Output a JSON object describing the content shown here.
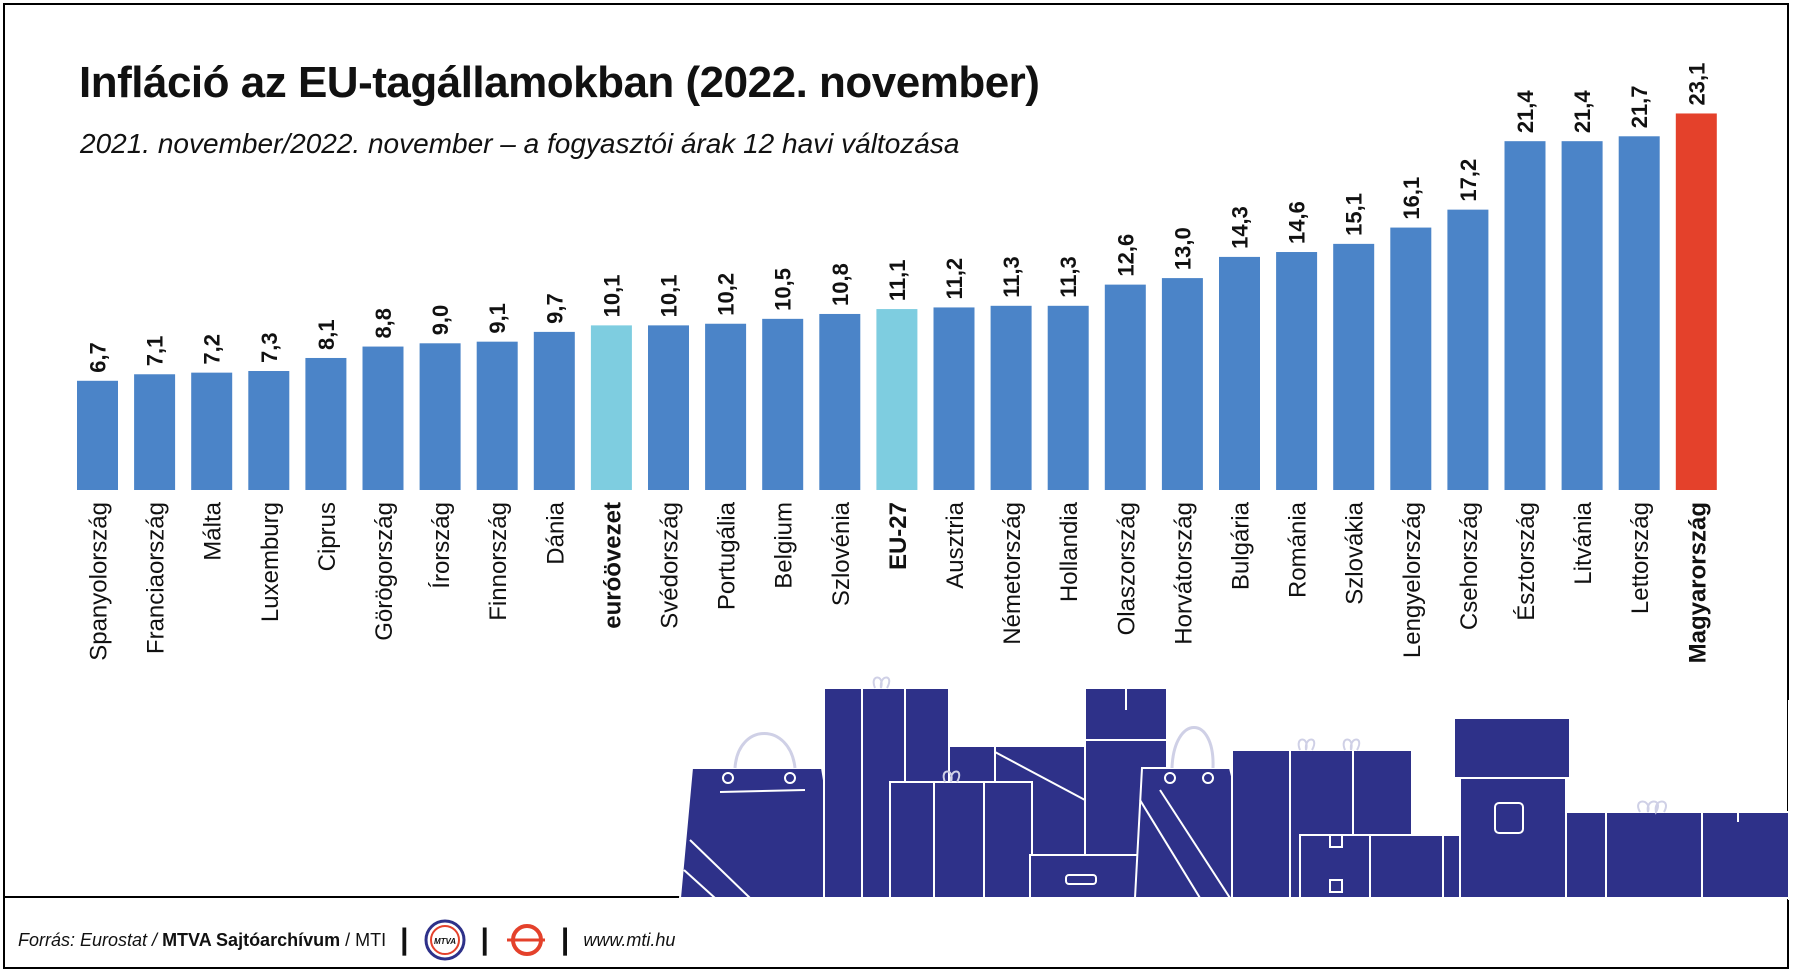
{
  "title": "Infláció az EU-tagállamokban (2022. november)",
  "subtitle": "2021. november/2022. november – a fogyasztói árak 12 havi változása",
  "colors": {
    "default": "#4b84c8",
    "highlight_light": "#7ecde0",
    "highlight_red": "#e4412b",
    "boxes": "#2e3189",
    "box_lines": "#ffffff"
  },
  "chart_data": {
    "type": "bar",
    "title": "Infláció az EU-tagállamokban (2022. november)",
    "subtitle": "2021. november/2022. november – a fogyasztói árak 12 havi változása",
    "xlabel": "",
    "ylabel": "",
    "ylim": [
      0,
      25
    ],
    "grid": false,
    "legend": "none",
    "categories": [
      "Spanyolország",
      "Franciaország",
      "Málta",
      "Luxemburg",
      "Ciprus",
      "Görögország",
      "Írország",
      "Finnország",
      "Dánia",
      "euróövezet",
      "Svédország",
      "Portugália",
      "Belgium",
      "Szlovénia",
      "EU-27",
      "Ausztria",
      "Németország",
      "Hollandia",
      "Olaszország",
      "Horvátország",
      "Bulgária",
      "Románia",
      "Szlovákia",
      "Lengyelország",
      "Csehország",
      "Észtország",
      "Litvánia",
      "Lettország",
      "Magyarország"
    ],
    "values": [
      6.7,
      7.1,
      7.2,
      7.3,
      8.1,
      8.8,
      9.0,
      9.1,
      9.7,
      10.1,
      10.1,
      10.2,
      10.5,
      10.8,
      11.1,
      11.2,
      11.3,
      11.3,
      12.6,
      13.0,
      14.3,
      14.6,
      15.1,
      16.1,
      17.2,
      21.4,
      21.4,
      21.7,
      23.1
    ],
    "value_labels": [
      "6,7",
      "7,1",
      "7,2",
      "7,3",
      "8,1",
      "8,8",
      "9,0",
      "9,1",
      "9,7",
      "10,1",
      "10,1",
      "10,2",
      "10,5",
      "10,8",
      "11,1",
      "11,2",
      "11,3",
      "11,3",
      "12,6",
      "13,0",
      "14,3",
      "14,6",
      "15,1",
      "16,1",
      "17,2",
      "21,4",
      "21,4",
      "21,7",
      "23,1"
    ],
    "highlight": {
      "euróövezet": "light",
      "EU-27": "light",
      "Magyarország": "red"
    },
    "bold_labels": [
      "euróövezet",
      "EU-27",
      "Magyarország"
    ]
  },
  "footer": {
    "source_prefix": "Forrás: Eurostat /",
    "source_bold": "MTVA Sajtóarchívum",
    "source_suffix": "/ MTI",
    "separator": "|",
    "logo1_text": "MTVA",
    "url": "www.mti.hu"
  }
}
